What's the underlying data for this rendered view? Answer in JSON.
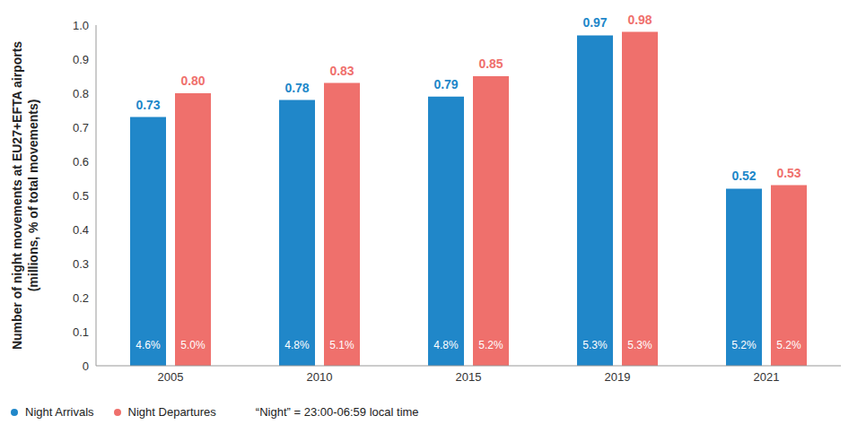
{
  "chart_data": {
    "type": "bar",
    "ylabel": [
      "Number of night movements at EU27+EFTA airports",
      "(millions, % of total movements)"
    ],
    "categories": [
      "2005",
      "2010",
      "2015",
      "2019",
      "2021"
    ],
    "series": [
      {
        "name": "Night Arrivals",
        "color": "#2087c9",
        "values": [
          0.73,
          0.78,
          0.79,
          0.97,
          0.52
        ],
        "value_labels": [
          "0.73",
          "0.78",
          "0.79",
          "0.97",
          "0.52"
        ],
        "share_labels": [
          "4.6%",
          "4.8%",
          "4.8%",
          "5.3%",
          "5.2%"
        ]
      },
      {
        "name": "Night Departures",
        "color": "#ef706c",
        "values": [
          0.8,
          0.83,
          0.85,
          0.98,
          0.53
        ],
        "value_labels": [
          "0.80",
          "0.83",
          "0.85",
          "0.98",
          "0.53"
        ],
        "share_labels": [
          "5.0%",
          "5.1%",
          "5.2%",
          "5.3%",
          "5.2%"
        ]
      }
    ],
    "ylim": [
      0,
      1
    ],
    "yticks": [
      0,
      0.1,
      0.2,
      0.3,
      0.4,
      0.5,
      0.6,
      0.7,
      0.8,
      0.9,
      {
        "value": 1,
        "label": "1.0"
      }
    ],
    "grid": false,
    "data_labels": true,
    "legend": "bottom",
    "annotations": [
      "“Night” = 23:00-06:59 local time"
    ]
  }
}
